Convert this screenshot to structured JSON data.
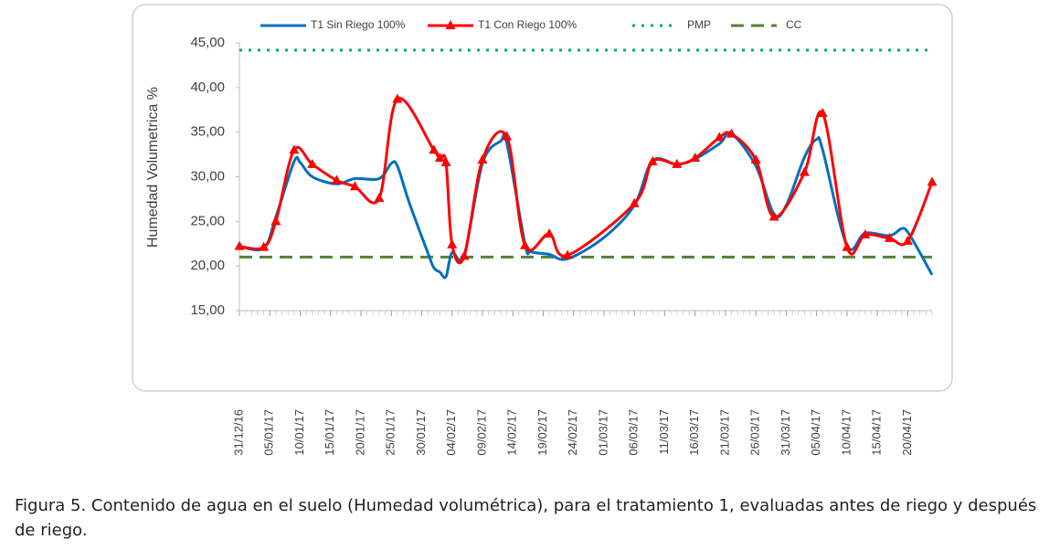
{
  "chart_data": {
    "type": "line",
    "y_label": "Humedad Volumetrica  %",
    "x": [
      "31/12/16",
      "04/01/17",
      "06/01/17",
      "09/01/17",
      "10/01/17",
      "12/01/17",
      "16/01/17",
      "19/01/17",
      "23/01/17",
      "25/01/17",
      "26/01/17",
      "28/01/17",
      "31/01/17",
      "01/02/17",
      "02/02/17",
      "03/02/17",
      "04/02/17",
      "06/02/17",
      "09/02/17",
      "12/02/17",
      "13/02/17",
      "16/02/17",
      "17/02/17",
      "20/02/17",
      "23/02/17",
      "01/03/17",
      "06/03/17",
      "09/03/17",
      "13/03/17",
      "16/03/17",
      "20/03/17",
      "22/03/17",
      "26/03/17",
      "29/03/17",
      "31/03/17",
      "03/04/17",
      "05/04/17",
      "06/04/17",
      "10/04/17",
      "13/04/17",
      "17/04/17",
      "19/04/17",
      "20/04/17",
      "22/04/17",
      "24/04/17"
    ],
    "series": [
      {
        "name": "T1 Sin Riego 100%",
        "color": "#0070c0",
        "marker": false,
        "values": [
          22.2,
          22.0,
          25.5,
          31.7,
          31.6,
          30.0,
          29.2,
          29.8,
          29.8,
          31.5,
          31.2,
          27.0,
          21.5,
          19.8,
          19.3,
          18.8,
          21.5,
          21.2,
          31.5,
          34.0,
          33.8,
          22.5,
          21.6,
          21.3,
          20.8,
          23.2,
          26.8,
          31.8,
          31.4,
          32.0,
          33.7,
          34.8,
          31.2,
          25.8,
          26.8,
          32.2,
          34.2,
          33.0,
          22.3,
          23.7,
          23.4,
          24.2,
          23.8,
          21.5,
          19.0
        ]
      },
      {
        "name": "T1 Con Riego 100%",
        "color": "#ff0000",
        "marker": true,
        "values": [
          22.2,
          22.1,
          25.0,
          33.0,
          null,
          31.4,
          29.6,
          28.9,
          27.6,
          null,
          38.7,
          null,
          null,
          33.0,
          32.1,
          31.6,
          22.4,
          21.1,
          31.9,
          null,
          34.5,
          22.3,
          null,
          23.6,
          21.2,
          null,
          27.0,
          31.7,
          31.4,
          32.1,
          34.4,
          34.8,
          31.9,
          25.5,
          null,
          30.5,
          null,
          37.1,
          22.1,
          23.5,
          23.1,
          null,
          22.8,
          null,
          29.4
        ]
      }
    ],
    "hlines": [
      {
        "name": "PMP",
        "color": "#00b050",
        "style": "dotted",
        "value": 44.2
      },
      {
        "name": "CC",
        "color": "#548235",
        "style": "dashed",
        "value": 21.0
      }
    ],
    "xlim": [
      "31/12/16",
      "24/04/17"
    ],
    "xticks": [
      "31/12/16",
      "05/01/17",
      "10/01/17",
      "15/01/17",
      "20/01/17",
      "25/01/17",
      "30/01/17",
      "04/02/17",
      "09/02/17",
      "14/02/17",
      "19/02/17",
      "24/02/17",
      "01/03/17",
      "06/03/17",
      "11/03/17",
      "16/03/17",
      "21/03/17",
      "26/03/17",
      "31/03/17",
      "05/04/17",
      "10/04/17",
      "15/04/17",
      "20/04/17"
    ],
    "ylim": [
      15,
      45
    ],
    "yticks": [
      {
        "value": 15,
        "label": "15,00"
      },
      {
        "value": 20,
        "label": "20,00"
      },
      {
        "value": 25,
        "label": "25,00"
      },
      {
        "value": 30,
        "label": "30,00"
      },
      {
        "value": 35,
        "label": "35,00"
      },
      {
        "value": 40,
        "label": "40,00"
      },
      {
        "value": 45,
        "label": "45,00"
      }
    ],
    "grid": false,
    "legend": "top",
    "caption": "Figura 5. Contenido de agua en el suelo (Humedad volumétrica), para el tratamiento 1, evaluadas antes de riego y después de riego."
  }
}
